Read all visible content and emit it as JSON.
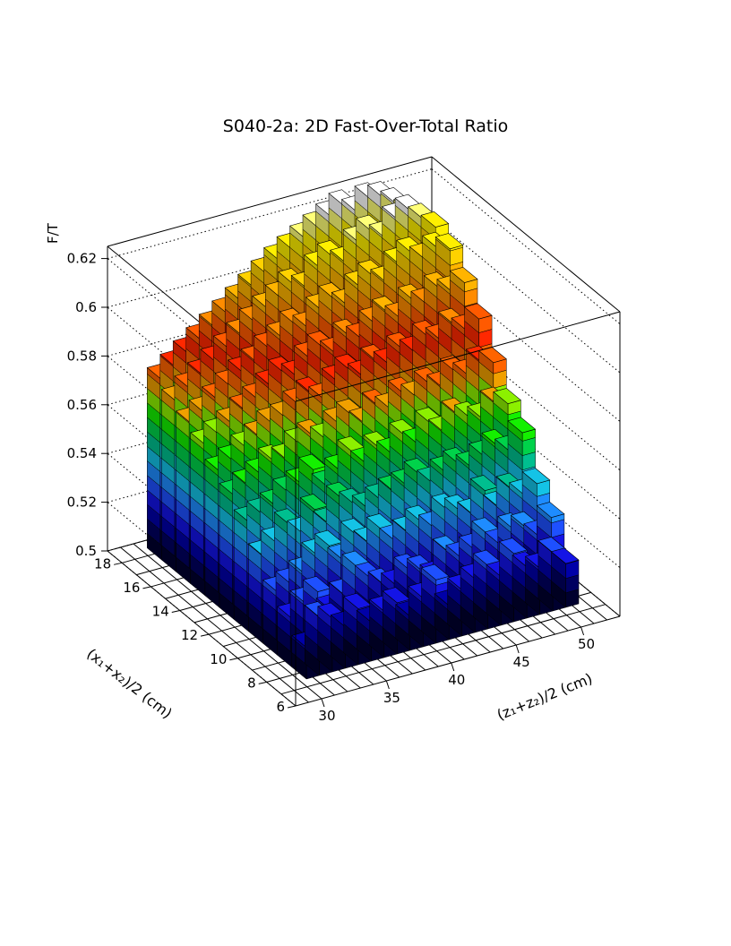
{
  "chart_data": {
    "type": "lego3d",
    "title": "S040-2a: 2D Fast-Over-Total Ratio",
    "xlabel": "(z₁+z₂)/2 (cm)",
    "ylabel": "(x₁+x₂)/2 (cm)",
    "zlabel": "F/T",
    "xticks": [
      "30",
      "35",
      "40",
      "45",
      "50"
    ],
    "yticks": [
      "6",
      "8",
      "10",
      "12",
      "14",
      "16",
      "18"
    ],
    "zticks": [
      "0.5",
      "0.52",
      "0.54",
      "0.56",
      "0.58",
      "0.6",
      "0.62"
    ],
    "xlim": [
      28,
      53
    ],
    "ylim": [
      6,
      19
    ],
    "zlim": [
      0.5,
      0.625
    ],
    "x_bin_range": [
      30.5,
      51.5
    ],
    "y_bin_range": [
      7.5,
      18.5
    ],
    "nx": 21,
    "ny": 11,
    "values": [
      [
        0.513,
        0.524,
        0.522,
        0.517,
        0.523,
        0.516,
        0.519,
        0.521,
        0.514,
        0.52,
        0.526,
        0.514,
        0.519,
        0.522,
        0.526,
        0.52,
        0.528,
        0.521,
        0.519,
        0.524,
        0.518
      ],
      [
        0.52,
        0.525,
        0.528,
        0.519,
        0.524,
        0.534,
        0.528,
        0.524,
        0.522,
        0.527,
        0.525,
        0.521,
        0.53,
        0.526,
        0.528,
        0.533,
        0.527,
        0.532,
        0.531,
        0.526,
        0.532
      ],
      [
        0.526,
        0.528,
        0.531,
        0.537,
        0.539,
        0.532,
        0.541,
        0.536,
        0.54,
        0.534,
        0.536,
        0.539,
        0.535,
        0.541,
        0.539,
        0.536,
        0.544,
        0.536,
        0.542,
        0.538,
        0.541
      ],
      [
        0.536,
        0.54,
        0.546,
        0.541,
        0.549,
        0.542,
        0.551,
        0.547,
        0.544,
        0.546,
        0.548,
        0.549,
        0.552,
        0.547,
        0.55,
        0.552,
        0.549,
        0.552,
        0.555,
        0.551,
        0.557
      ],
      [
        0.545,
        0.547,
        0.549,
        0.553,
        0.555,
        0.559,
        0.551,
        0.556,
        0.562,
        0.556,
        0.561,
        0.557,
        0.563,
        0.558,
        0.565,
        0.56,
        0.566,
        0.563,
        0.561,
        0.566,
        0.564
      ],
      [
        0.551,
        0.554,
        0.557,
        0.561,
        0.56,
        0.565,
        0.567,
        0.564,
        0.569,
        0.571,
        0.566,
        0.572,
        0.569,
        0.574,
        0.571,
        0.575,
        0.572,
        0.577,
        0.574,
        0.578,
        0.576
      ],
      [
        0.556,
        0.559,
        0.563,
        0.566,
        0.57,
        0.571,
        0.575,
        0.578,
        0.574,
        0.58,
        0.583,
        0.579,
        0.584,
        0.581,
        0.586,
        0.583,
        0.588,
        0.585,
        0.59,
        0.586,
        0.589
      ],
      [
        0.562,
        0.565,
        0.568,
        0.572,
        0.575,
        0.579,
        0.583,
        0.58,
        0.586,
        0.589,
        0.585,
        0.591,
        0.588,
        0.593,
        0.596,
        0.592,
        0.598,
        0.595,
        0.6,
        0.597,
        0.599
      ],
      [
        0.566,
        0.569,
        0.573,
        0.577,
        0.581,
        0.584,
        0.588,
        0.591,
        0.595,
        0.592,
        0.598,
        0.601,
        0.597,
        0.603,
        0.606,
        0.602,
        0.608,
        0.611,
        0.607,
        0.61,
        0.608
      ],
      [
        0.57,
        0.574,
        0.578,
        0.582,
        0.586,
        0.59,
        0.594,
        0.598,
        0.601,
        0.605,
        0.602,
        0.609,
        0.612,
        0.608,
        0.615,
        0.618,
        0.614,
        0.62,
        0.622,
        0.617,
        0.612
      ],
      [
        0.574,
        0.578,
        0.582,
        0.586,
        0.59,
        0.594,
        0.598,
        0.602,
        0.606,
        0.61,
        0.613,
        0.616,
        0.619,
        0.622,
        0.625,
        0.621,
        0.625,
        0.624,
        0.62,
        0.615,
        0.61
      ]
    ],
    "palette": [
      "#00002e",
      "#000060",
      "#0000a8",
      "#1414e6",
      "#1e50ff",
      "#1e8cff",
      "#14c3e6",
      "#00bf8f",
      "#00d24a",
      "#14f000",
      "#8cf000",
      "#f0a000",
      "#ff6400",
      "#ff2800",
      "#ff5a00",
      "#ff8c00",
      "#ffb400",
      "#ffd200",
      "#fff000",
      "#ffff78",
      "#ffffff"
    ],
    "grid": true
  }
}
